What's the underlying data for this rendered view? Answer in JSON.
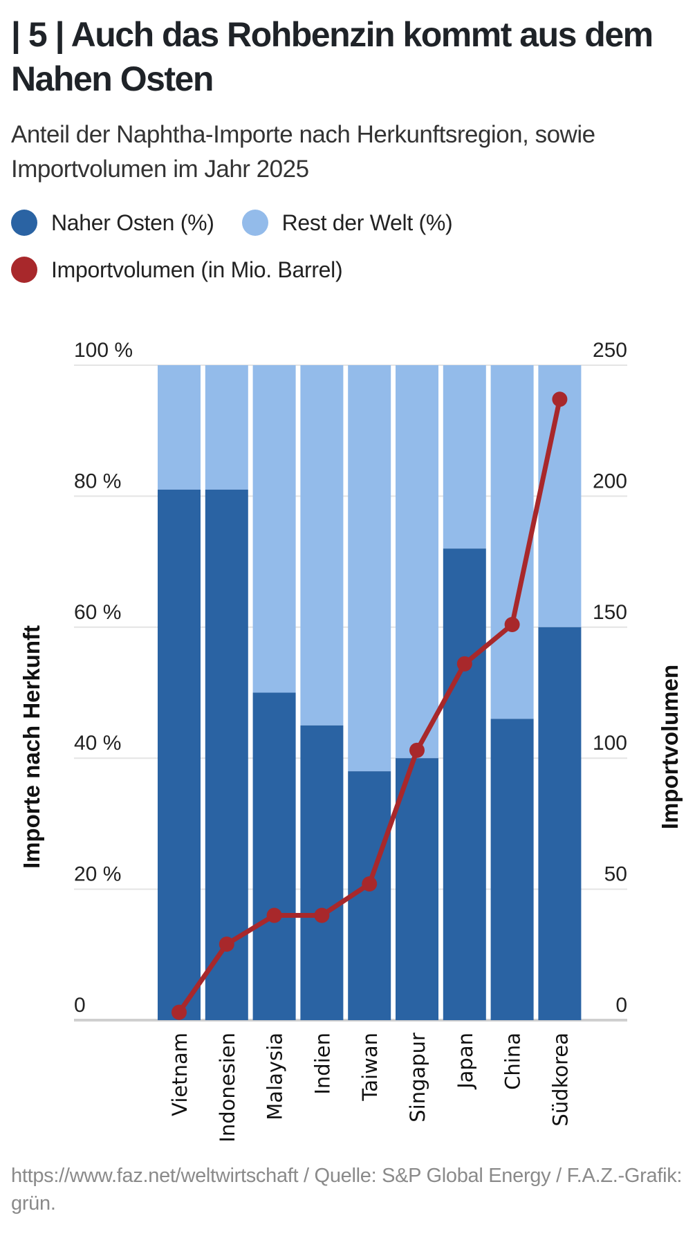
{
  "header": {
    "title": "| 5 | Auch das Rohbenzin kommt aus dem Nahen Osten",
    "subtitle": "Anteil der Naphtha-Importe nach Herkunftsregion, sowie Importvolumen im Jahr 2025"
  },
  "legend": [
    {
      "label": "Naher Osten (%)",
      "color": "#2a63a3"
    },
    {
      "label": "Rest der Welt (%)",
      "color": "#93bbea"
    },
    {
      "label": "Importvolumen (in Mio. Barrel)",
      "color": "#a8282b"
    }
  ],
  "chart_data": {
    "type": "bar",
    "stacked": true,
    "categories": [
      "Vietnam",
      "Indonesien",
      "Malaysia",
      "Indien",
      "Taiwan",
      "Singapur",
      "Japan",
      "China",
      "Südkorea"
    ],
    "series": [
      {
        "name": "Naher Osten (%)",
        "type": "bar",
        "axis": "left",
        "color": "#2a63a3",
        "values": [
          81,
          81,
          50,
          45,
          38,
          40,
          72,
          46,
          60
        ]
      },
      {
        "name": "Rest der Welt (%)",
        "type": "bar",
        "axis": "left",
        "color": "#93bbea",
        "values": [
          19,
          19,
          50,
          55,
          62,
          60,
          28,
          54,
          40
        ]
      },
      {
        "name": "Importvolumen (in Mio. Barrel)",
        "type": "line",
        "axis": "right",
        "color": "#a8282b",
        "values": [
          3,
          29,
          40,
          40,
          52,
          103,
          136,
          151,
          237
        ]
      }
    ],
    "ylabel": "Importe nach Herkunft",
    "y2label": "Importvolumen",
    "ylim": [
      0,
      100
    ],
    "y2lim": [
      0,
      250
    ],
    "yticks": [
      "0",
      "20 %",
      "40 %",
      "60 %",
      "80 %",
      "100 %"
    ],
    "y2ticks": [
      "0",
      "50",
      "100",
      "150",
      "200",
      "250"
    ],
    "grid": true,
    "legend_position": "top"
  },
  "footer": {
    "source": "https://www.faz.net/weltwirtschaft / Quelle: S&P Global Energy / F.A.Z.-Grafik: grün."
  }
}
